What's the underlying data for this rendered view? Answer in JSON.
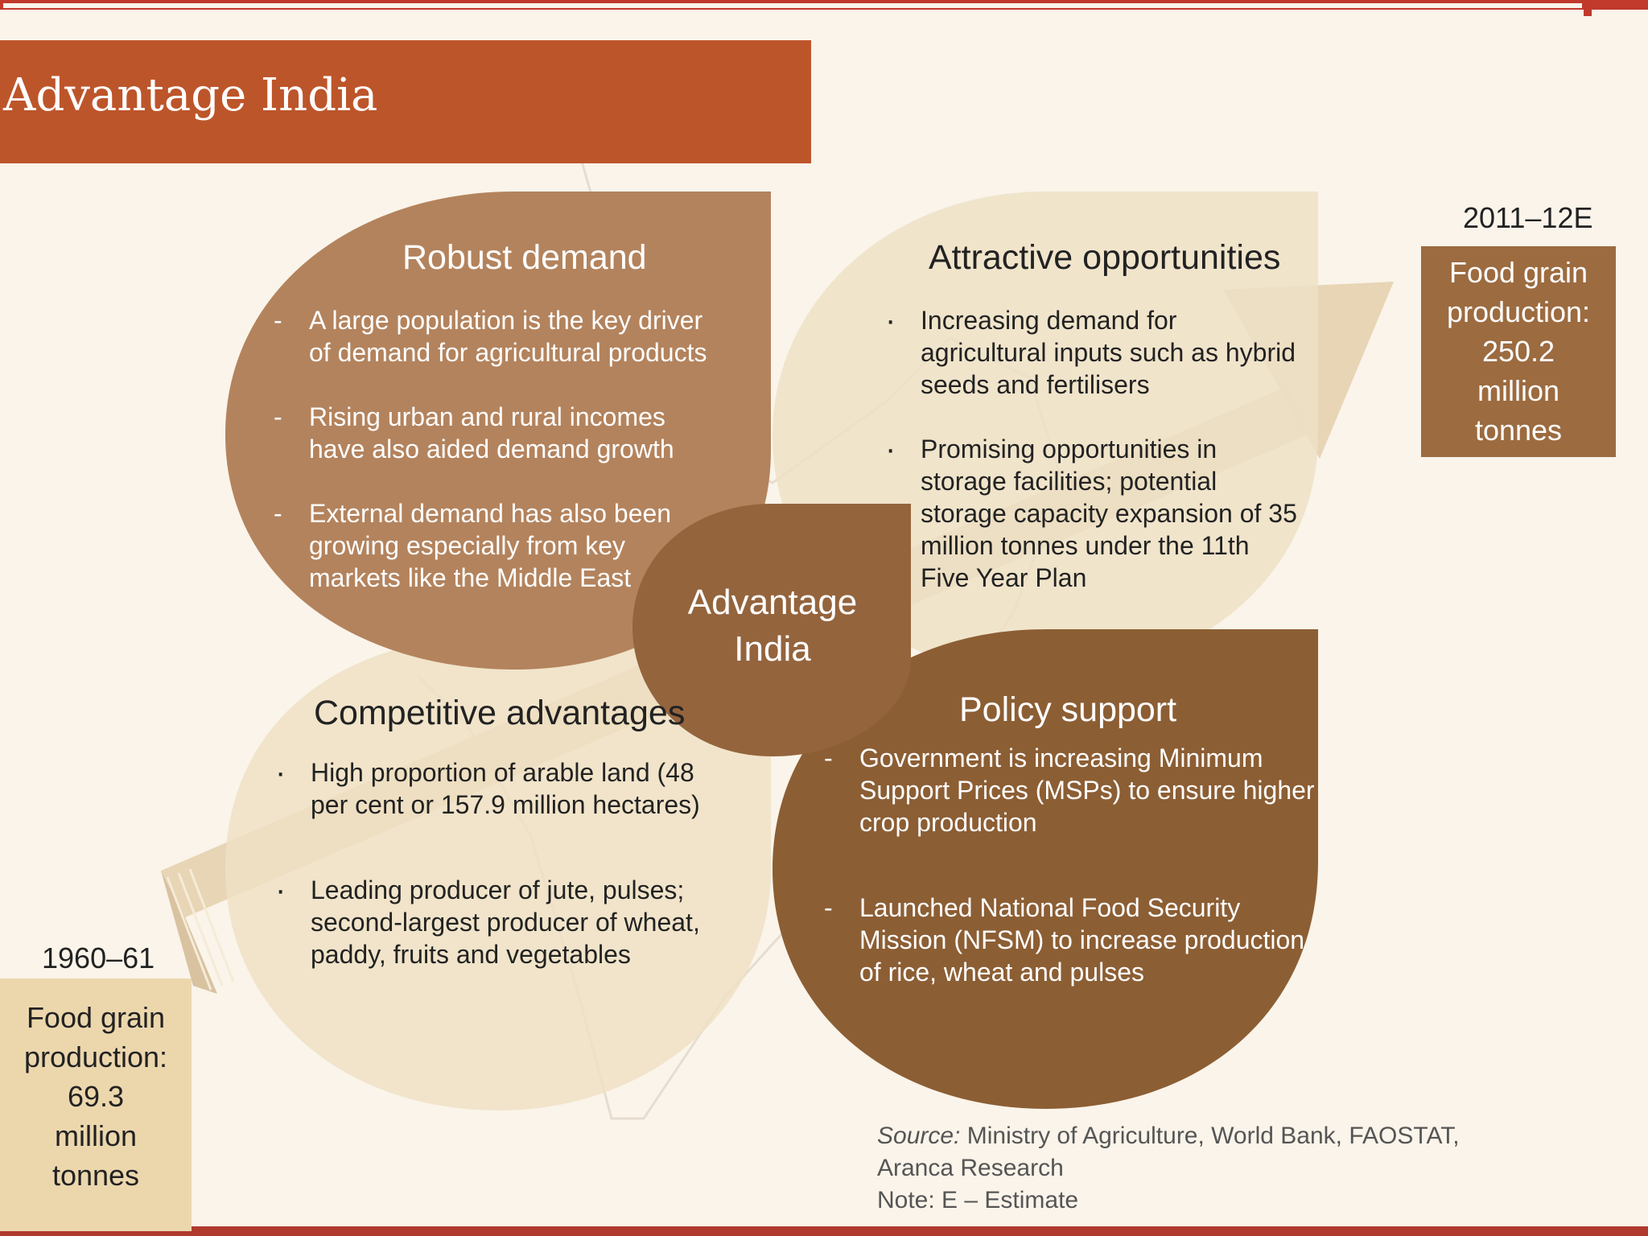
{
  "title": "Advantage India",
  "center": {
    "line1": "Advantage",
    "line2": "India"
  },
  "robust_demand": {
    "title": "Robust demand",
    "items": [
      [
        "A large population is the key driver",
        "of demand for agricultural products"
      ],
      [
        "Rising urban and rural incomes",
        "have also aided demand growth"
      ],
      [
        "External demand has also been",
        "growing especially from key",
        "markets like the Middle East"
      ]
    ]
  },
  "attractive_opportunities": {
    "title": "Attractive opportunities",
    "items": [
      [
        "Increasing demand for",
        "agricultural inputs such as hybrid",
        "seeds and fertilisers"
      ],
      [
        "Promising opportunities in",
        "storage facilities; potential",
        "storage capacity expansion of 35",
        "million tonnes under the 11th",
        "Five Year Plan"
      ]
    ]
  },
  "competitive_advantages": {
    "title": "Competitive advantages",
    "items": [
      [
        "High proportion of arable land (48",
        "per cent or 157.9 million hectares)"
      ],
      [
        "Leading producer of jute, pulses;",
        "second-largest producer of wheat,",
        "paddy, fruits and vegetables"
      ]
    ]
  },
  "policy_support": {
    "title": "Policy support",
    "items": [
      [
        "Government is increasing Minimum",
        "Support Prices (MSPs) to ensure higher",
        "crop production"
      ],
      [
        "Launched National Food Security",
        "Mission (NFSM) to increase production",
        "of rice, wheat and pulses"
      ]
    ]
  },
  "stat_2011": {
    "year": "2011–12E",
    "lines": [
      "Food grain",
      "production:",
      "250.2",
      "million",
      "tonnes"
    ]
  },
  "stat_1960": {
    "year": "1960–61",
    "lines": [
      "Food grain",
      "production:",
      "69.3",
      "million",
      "tonnes"
    ]
  },
  "source": {
    "label": "Source:",
    "text": "Ministry of Agriculture, World Bank, FAOSTAT,",
    "line2": "Aranca Research",
    "note": "Note: E – Estimate"
  },
  "colors": {
    "title_bar": "#bd552a",
    "robust": "#b3835d",
    "attractive": "#ede0c6",
    "competitive": "#eee0c4",
    "policy": "#8c5e34",
    "center": "#94643d",
    "stat_2011": "#9c6b40",
    "stat_1960": "#ecd7ad"
  }
}
